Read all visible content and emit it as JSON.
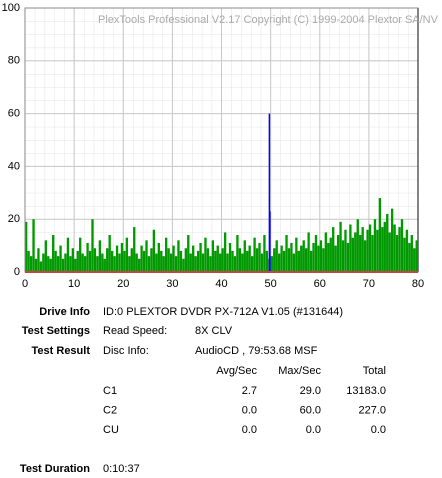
{
  "chart_data": {
    "type": "bar",
    "annotation": "PlexTools Professional V2.17 Copyright (C) 1999-2004 Plextor SA/NV",
    "xlim": [
      0,
      80
    ],
    "ylim": [
      0,
      100
    ],
    "xticks": [
      0,
      10,
      20,
      30,
      40,
      50,
      60,
      70,
      80
    ],
    "yticks": [
      0,
      20,
      40,
      60,
      80,
      100
    ],
    "grid": true,
    "series": [
      {
        "color": "#009900",
        "x": [
          0,
          0.5,
          1,
          1.5,
          2,
          2.5,
          3,
          3.5,
          4,
          4.5,
          5,
          5.5,
          6,
          6.5,
          7,
          7.5,
          8,
          8.5,
          9,
          9.5,
          10,
          10.5,
          11,
          11.5,
          12,
          12.5,
          13,
          13.5,
          14,
          14.5,
          15,
          15.5,
          16,
          16.5,
          17,
          17.5,
          18,
          18.5,
          19,
          19.5,
          20,
          20.5,
          21,
          21.5,
          22,
          22.5,
          23,
          23.5,
          24,
          24.5,
          25,
          25.5,
          26,
          26.5,
          27,
          27.5,
          28,
          28.5,
          29,
          29.5,
          30,
          30.5,
          31,
          31.5,
          32,
          32.5,
          33,
          33.5,
          34,
          34.5,
          35,
          35.5,
          36,
          36.5,
          37,
          37.5,
          38,
          38.5,
          39,
          39.5,
          40,
          40.5,
          41,
          41.5,
          42,
          42.5,
          43,
          43.5,
          44,
          44.5,
          45,
          45.5,
          46,
          46.5,
          47,
          47.5,
          48,
          48.5,
          49,
          49.5,
          50,
          50.5,
          51,
          51.5,
          52,
          52.5,
          53,
          53.5,
          54,
          54.5,
          55,
          55.5,
          56,
          56.5,
          57,
          57.5,
          58,
          58.5,
          59,
          59.5,
          60,
          60.5,
          61,
          61.5,
          62,
          62.5,
          63,
          63.5,
          64,
          64.5,
          65,
          65.5,
          66,
          66.5,
          67,
          67.5,
          68,
          68.5,
          69,
          69.5,
          70,
          70.5,
          71,
          71.5,
          72,
          72.5,
          73,
          73.5,
          74,
          74.5,
          75,
          75.5,
          76,
          76.5,
          77,
          77.5,
          78,
          78.5,
          79,
          79.5
        ],
        "values": [
          19,
          8,
          6,
          20,
          5,
          9,
          4,
          7,
          12,
          6,
          5,
          14,
          8,
          6,
          10,
          5,
          7,
          13,
          6,
          9,
          5,
          8,
          13,
          7,
          6,
          11,
          8,
          20,
          9,
          6,
          12,
          7,
          5,
          9,
          14,
          8,
          6,
          10,
          7,
          11,
          8,
          13,
          6,
          9,
          17,
          7,
          5,
          10,
          8,
          12,
          6,
          9,
          16,
          7,
          11,
          8,
          6,
          13,
          9,
          7,
          10,
          6,
          12,
          8,
          5,
          9,
          14,
          7,
          10,
          6,
          8,
          11,
          7,
          13,
          9,
          6,
          12,
          8,
          10,
          7,
          9,
          15,
          7,
          11,
          8,
          6,
          14,
          9,
          7,
          12,
          8,
          10,
          6,
          13,
          9,
          11,
          7,
          14,
          8,
          5,
          6,
          9,
          12,
          7,
          10,
          8,
          14,
          9,
          11,
          7,
          13,
          8,
          10,
          12,
          9,
          15,
          8,
          11,
          14,
          10,
          12,
          9,
          15,
          11,
          13,
          17,
          10,
          14,
          19,
          12,
          16,
          11,
          18,
          13,
          15,
          20,
          14,
          17,
          12,
          16,
          18,
          14,
          20,
          16,
          28,
          17,
          19,
          22,
          15,
          24,
          18,
          14,
          17,
          20,
          13,
          16,
          11,
          14,
          9,
          12
        ]
      },
      {
        "color": "#0000ff",
        "x": [
          49.6,
          49.7
        ],
        "values": [
          60,
          23
        ]
      },
      {
        "color": "#ff0000",
        "x": [
          0,
          80
        ],
        "values": [
          0,
          0
        ],
        "line": true
      }
    ]
  },
  "report": {
    "drive_info": {
      "label": "Drive Info",
      "value": "ID:0 PLEXTOR DVDR PX-712A V1.05 (#131644)"
    },
    "test_settings": {
      "label": "Test Settings",
      "key": "Read Speed:",
      "value": "8X CLV"
    },
    "test_result": {
      "label": "Test Result",
      "key": "Disc Info:",
      "value": "AudioCD , 79:53.68 MSF"
    },
    "columns": [
      "Avg/Sec",
      "Max/Sec",
      "Total"
    ],
    "rows": [
      [
        "C1",
        "2.7",
        "29.0",
        "13183.0"
      ],
      [
        "C2",
        "0.0",
        "60.0",
        "227.0"
      ],
      [
        "CU",
        "0.0",
        "0.0",
        "0.0"
      ]
    ],
    "test_duration": {
      "label": "Test Duration",
      "value": "0:10:37"
    }
  }
}
